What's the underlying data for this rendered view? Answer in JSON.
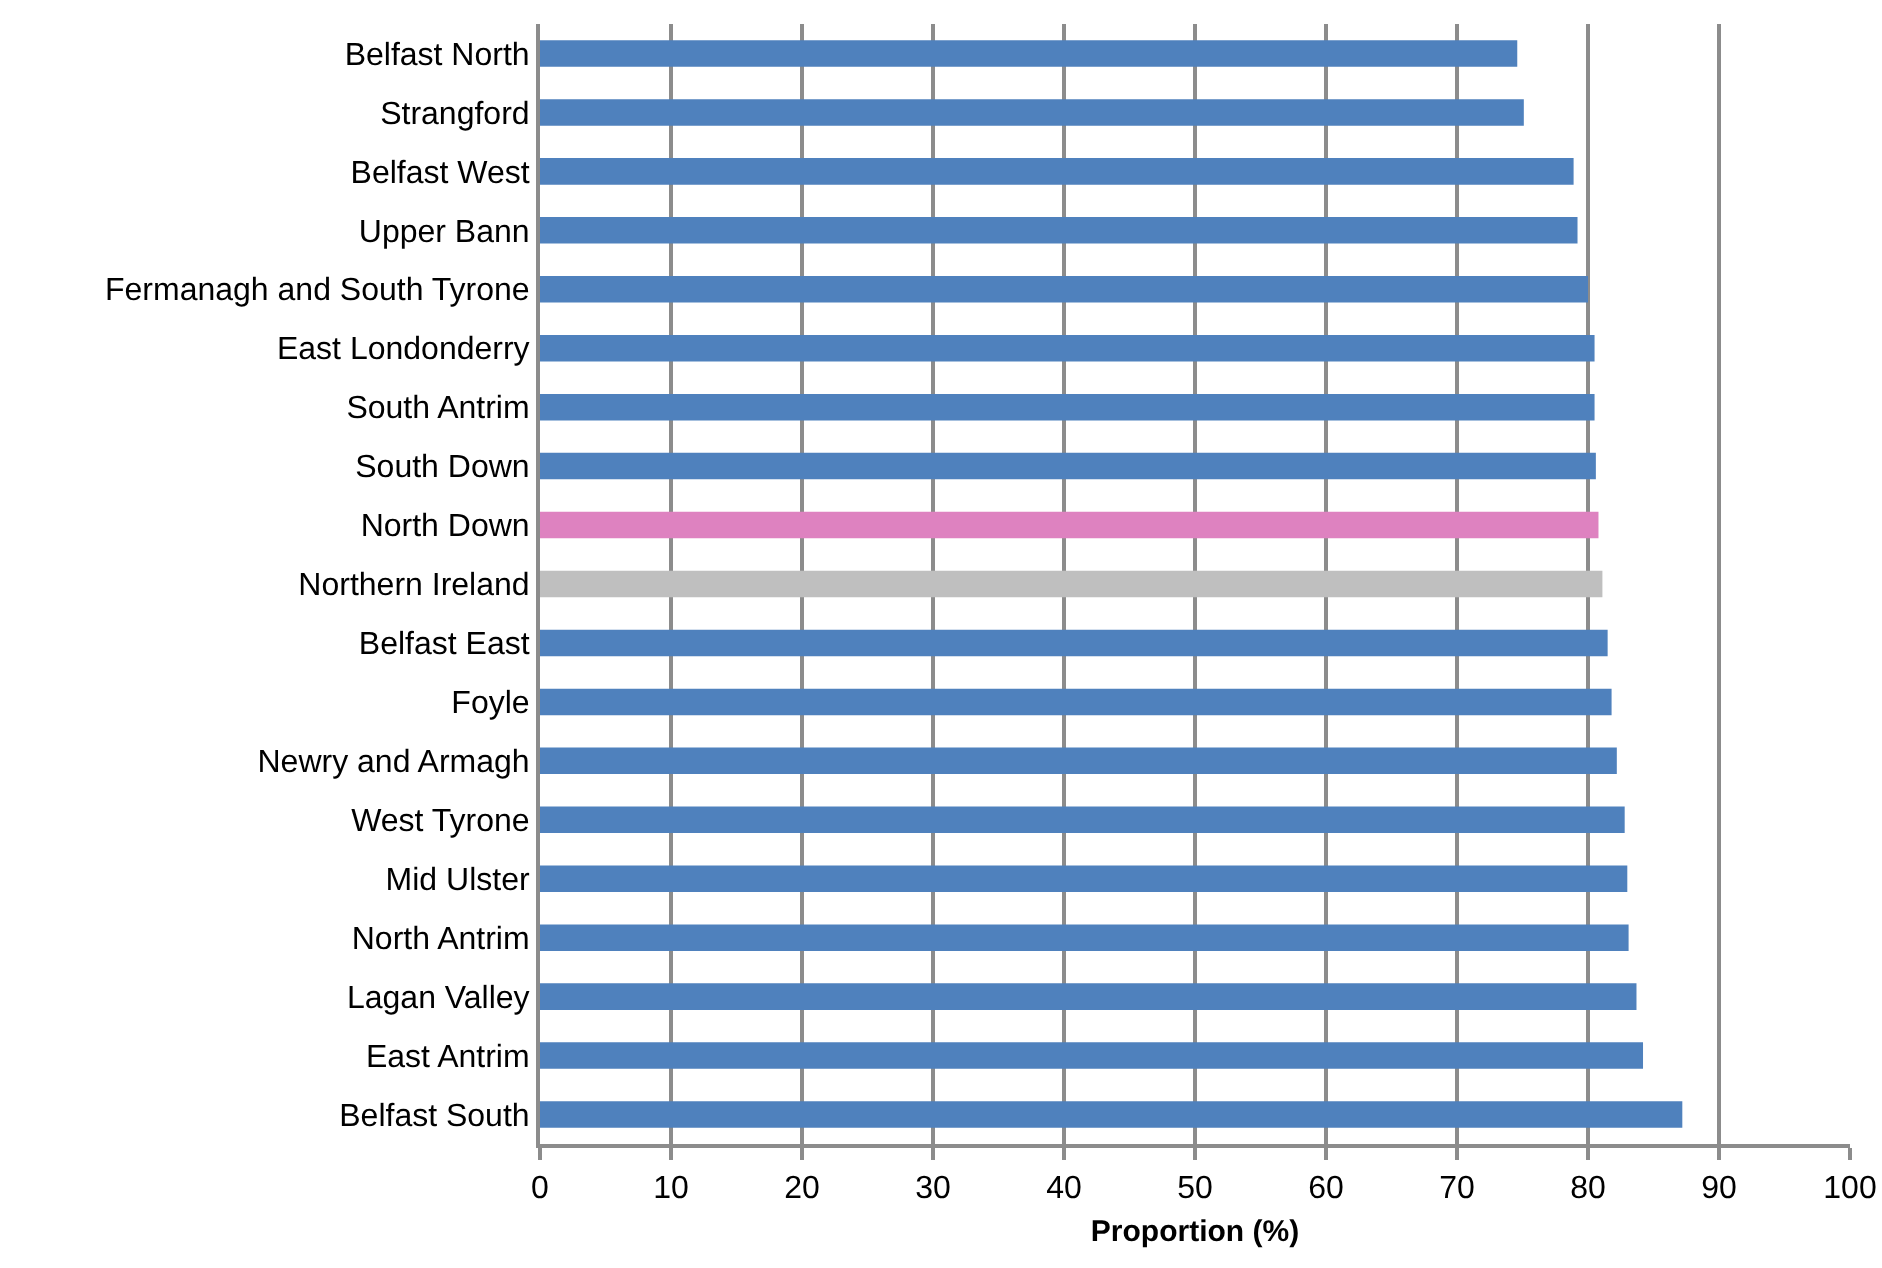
{
  "chart_data": {
    "type": "bar",
    "orientation": "horizontal",
    "xlabel": "Proportion (%)",
    "categories": [
      "Belfast North",
      "Strangford",
      "Belfast West",
      "Upper Bann",
      "Fermanagh and South Tyrone",
      "East Londonderry",
      "South Antrim",
      "South Down",
      "North Down",
      "Northern Ireland",
      "Belfast East",
      "Foyle",
      "Newry and Armagh",
      "West Tyrone",
      "Mid Ulster",
      "North Antrim",
      "Lagan Valley",
      "East Antrim",
      "Belfast South"
    ],
    "values": [
      74.6,
      75.1,
      78.9,
      79.2,
      80.0,
      80.5,
      80.5,
      80.6,
      80.8,
      81.1,
      81.5,
      81.8,
      82.2,
      82.8,
      83.0,
      83.1,
      83.7,
      84.2,
      87.2
    ],
    "colors": [
      "#4f81bd",
      "#4f81bd",
      "#4f81bd",
      "#4f81bd",
      "#4f81bd",
      "#4f81bd",
      "#4f81bd",
      "#4f81bd",
      "#de82c0",
      "#bfbfbf",
      "#4f81bd",
      "#4f81bd",
      "#4f81bd",
      "#4f81bd",
      "#4f81bd",
      "#4f81bd",
      "#4f81bd",
      "#4f81bd",
      "#4f81bd"
    ],
    "xlim": [
      0,
      100
    ],
    "xticks": [
      0,
      10,
      20,
      30,
      40,
      50,
      60,
      70,
      80,
      90,
      100
    ],
    "grid": "x",
    "legend": false
  }
}
